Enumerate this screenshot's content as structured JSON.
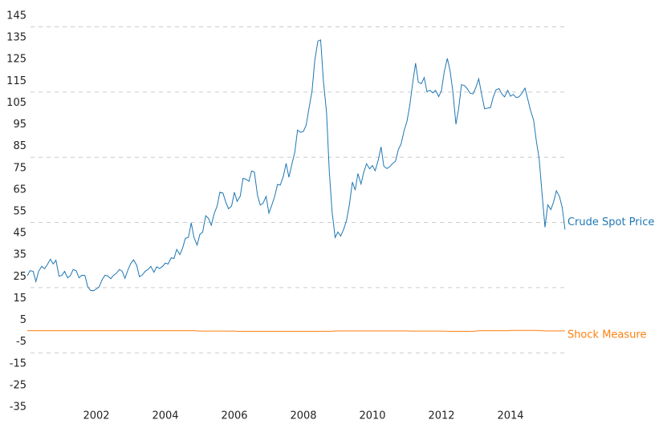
{
  "chart_data": {
    "type": "line",
    "x": [
      2000,
      2000.08,
      2000.17,
      2000.25,
      2000.33,
      2000.42,
      2000.5,
      2000.58,
      2000.67,
      2000.75,
      2000.83,
      2000.92,
      2001,
      2001.08,
      2001.17,
      2001.25,
      2001.33,
      2001.42,
      2001.5,
      2001.58,
      2001.67,
      2001.75,
      2001.83,
      2001.92,
      2002,
      2002.08,
      2002.17,
      2002.25,
      2002.33,
      2002.42,
      2002.5,
      2002.58,
      2002.67,
      2002.75,
      2002.83,
      2002.92,
      2003,
      2003.08,
      2003.17,
      2003.25,
      2003.33,
      2003.42,
      2003.5,
      2003.58,
      2003.67,
      2003.75,
      2003.83,
      2003.92,
      2004,
      2004.08,
      2004.17,
      2004.25,
      2004.33,
      2004.42,
      2004.5,
      2004.58,
      2004.67,
      2004.75,
      2004.83,
      2004.92,
      2005,
      2005.08,
      2005.17,
      2005.25,
      2005.33,
      2005.42,
      2005.5,
      2005.58,
      2005.67,
      2005.75,
      2005.83,
      2005.92,
      2006,
      2006.08,
      2006.17,
      2006.25,
      2006.33,
      2006.42,
      2006.5,
      2006.58,
      2006.67,
      2006.75,
      2006.83,
      2006.92,
      2007,
      2007.08,
      2007.17,
      2007.25,
      2007.33,
      2007.42,
      2007.5,
      2007.58,
      2007.67,
      2007.75,
      2007.83,
      2007.92,
      2008,
      2008.08,
      2008.17,
      2008.25,
      2008.33,
      2008.42,
      2008.5,
      2008.58,
      2008.67,
      2008.75,
      2008.83,
      2008.92,
      2009,
      2009.08,
      2009.17,
      2009.25,
      2009.33,
      2009.42,
      2009.5,
      2009.58,
      2009.67,
      2009.75,
      2009.83,
      2009.92,
      2010,
      2010.08,
      2010.17,
      2010.25,
      2010.33,
      2010.42,
      2010.5,
      2010.58,
      2010.67,
      2010.75,
      2010.83,
      2010.92,
      2011,
      2011.08,
      2011.17,
      2011.25,
      2011.33,
      2011.42,
      2011.5,
      2011.58,
      2011.67,
      2011.75,
      2011.83,
      2011.92,
      2012,
      2012.08,
      2012.17,
      2012.25,
      2012.33,
      2012.42,
      2012.5,
      2012.58,
      2012.67,
      2012.75,
      2012.83,
      2012.92,
      2013,
      2013.08,
      2013.17,
      2013.25,
      2013.33,
      2013.42,
      2013.5,
      2013.58,
      2013.67,
      2013.75,
      2013.83,
      2013.92,
      2014,
      2014.08,
      2014.17,
      2014.25,
      2014.33,
      2014.42,
      2014.5,
      2014.58,
      2014.67,
      2014.75,
      2014.83,
      2014.92,
      2015,
      2015.08,
      2015.17,
      2015.25,
      2015.33,
      2015.42,
      2015.5,
      2015.58
    ],
    "series": [
      {
        "name": "Crude Spot Price",
        "color": "#1f77b4",
        "values": [
          25.5,
          27.8,
          27.5,
          22.8,
          27.6,
          29.8,
          28.7,
          30.6,
          33.1,
          30.9,
          32.6,
          25.3,
          25.6,
          27.5,
          24.5,
          25.6,
          28.4,
          27.7,
          24.5,
          25.7,
          25.6,
          20.5,
          18.7,
          18.6,
          19.4,
          20.3,
          23.7,
          25.7,
          25.4,
          24.1,
          25.7,
          26.6,
          28.4,
          27.5,
          24.3,
          28.3,
          31.2,
          32.8,
          30.3,
          25.0,
          25.8,
          27.6,
          28.4,
          29.8,
          27.1,
          29.6,
          28.8,
          29.8,
          31.3,
          30.9,
          33.8,
          33.4,
          37.6,
          35.2,
          38.2,
          42.7,
          43.2,
          49.8,
          43.1,
          39.6,
          44.5,
          45.5,
          53.1,
          51.9,
          48.7,
          54.3,
          57.5,
          63.9,
          63.5,
          59.4,
          56.3,
          57.6,
          63.9,
          59.7,
          62.1,
          70.3,
          70.0,
          68.9,
          73.7,
          73.2,
          62.5,
          58.0,
          58.8,
          62.0,
          54.3,
          57.8,
          62.1,
          67.5,
          67.2,
          71.3,
          77.2,
          70.8,
          77.1,
          82.3,
          92.5,
          91.5,
          91.9,
          94.8,
          103.3,
          110.4,
          124.6,
          133.5,
          134.0,
          115.0,
          100.8,
          73.6,
          55.1,
          43.1,
          45.6,
          43.7,
          47.0,
          51.0,
          57.9,
          68.6,
          64.9,
          72.5,
          67.7,
          73.2,
          77.0,
          74.7,
          76.2,
          73.8,
          78.8,
          84.8,
          75.9,
          74.8,
          75.6,
          77.1,
          78.2,
          83.5,
          86.1,
          92.4,
          96.5,
          103.7,
          114.6,
          123.3,
          114.5,
          113.9,
          116.7,
          110.2,
          110.8,
          109.6,
          110.8,
          107.9,
          110.7,
          119.3,
          125.5,
          119.8,
          110.3,
          95.2,
          102.6,
          113.4,
          113.0,
          111.5,
          109.5,
          109.2,
          112.3,
          116.1,
          108.5,
          102.3,
          102.6,
          102.9,
          107.7,
          111.0,
          111.6,
          109.1,
          107.8,
          110.8,
          108.1,
          108.9,
          107.5,
          107.8,
          109.5,
          111.8,
          106.8,
          101.6,
          97.1,
          87.4,
          79.4,
          62.3,
          47.8,
          58.1,
          55.9,
          59.5,
          64.6,
          61.9,
          56.8,
          46.7
        ]
      },
      {
        "name": "Shock Measure",
        "color": "#ff7f0e",
        "values": [
          0.2,
          0.2,
          0.2,
          0.2,
          0.2,
          0.2,
          0.2,
          0.2,
          0.2,
          0.2,
          0.2,
          0.2,
          0.2,
          0.2,
          0.2,
          0.2,
          0.2,
          0.2,
          0.2,
          0.2,
          0.2,
          0.2,
          0.2,
          0.2,
          0.2,
          0.2,
          0.2,
          0.2,
          0.2,
          0.2,
          0.2,
          0.2,
          0.2,
          0.2,
          0.2,
          0.2,
          0.2,
          0.2,
          0.2,
          0.2,
          0.2,
          0.2,
          0.2,
          0.2,
          0.2,
          0.2,
          0.2,
          0.2,
          0.2,
          0.2,
          0.2,
          0.2,
          0.2,
          0.2,
          0.2,
          0.2,
          0.2,
          0.2,
          0.2,
          0.1,
          0,
          0,
          0,
          0,
          0,
          0,
          0,
          0,
          0,
          0,
          0,
          0,
          0,
          -0.1,
          -0.1,
          -0.1,
          -0.1,
          -0.1,
          -0.1,
          -0.1,
          -0.1,
          -0.1,
          -0.1,
          -0.1,
          -0.1,
          -0.1,
          -0.1,
          -0.1,
          -0.1,
          -0.1,
          -0.1,
          -0.1,
          -0.1,
          -0.1,
          -0.1,
          -0.1,
          -0.1,
          -0.1,
          -0.1,
          -0.1,
          -0.1,
          -0.1,
          -0.1,
          -0.1,
          -0.1,
          -0.1,
          0,
          0,
          0.1,
          0.1,
          0.1,
          0.1,
          0.1,
          0.1,
          0.1,
          0.1,
          0.1,
          0.1,
          0.1,
          0.1,
          0.1,
          0.1,
          0.1,
          0.1,
          0.1,
          0.1,
          0.1,
          0.1,
          0.1,
          0.1,
          0.1,
          0.1,
          0.1,
          0,
          0,
          0,
          0,
          0,
          0,
          0,
          0,
          0,
          0,
          0,
          0,
          0,
          -0.1,
          -0.1,
          -0.1,
          -0.1,
          -0.1,
          -0.1,
          -0.1,
          -0.1,
          -0.1,
          -0.1,
          0,
          0.2,
          0.2,
          0.2,
          0.2,
          0.2,
          0.2,
          0.2,
          0.2,
          0.2,
          0.2,
          0.2,
          0.3,
          0.3,
          0.3,
          0.3,
          0.3,
          0.3,
          0.3,
          0.3,
          0.3,
          0.3,
          0.2,
          0.2,
          0.1,
          0.1,
          0.1,
          0.1,
          0.1,
          0.1,
          0.1,
          0.1
        ]
      }
    ],
    "xlim": [
      2000,
      2015.7
    ],
    "xticks": [
      2002,
      2004,
      2006,
      2008,
      2010,
      2012,
      2014
    ],
    "ylim": [
      -35,
      145
    ],
    "yticks": [
      145,
      135,
      125,
      115,
      105,
      95,
      85,
      75,
      65,
      55,
      45,
      35,
      25,
      15,
      5,
      -5,
      -15,
      -25,
      -35
    ],
    "grid_lines": [
      -10,
      20,
      50,
      80,
      110,
      140
    ]
  }
}
